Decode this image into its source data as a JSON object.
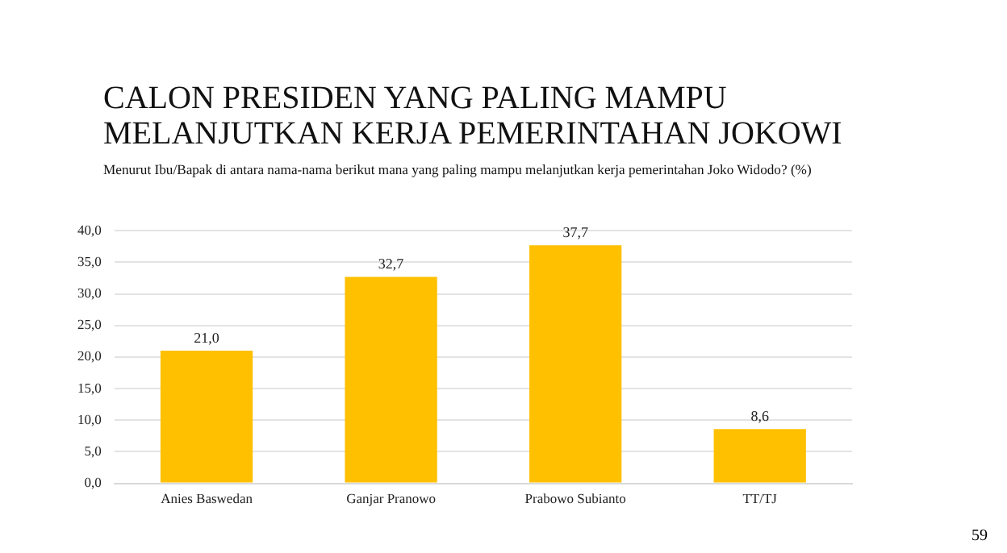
{
  "chart_data": {
    "type": "bar",
    "title": "CALON PRESIDEN YANG PALING MAMPU MELANJUTKAN KERJA PEMERINTAHAN JOKOWI",
    "subtitle": "Menurut Ibu/Bapak di antara nama-nama berikut mana yang paling mampu melanjutkan kerja pemerintahan Joko Widodo?  (%)",
    "categories": [
      "Anies Baswedan",
      "Ganjar Pranowo",
      "Prabowo Subianto",
      "TT/TJ"
    ],
    "values": [
      21.0,
      32.7,
      37.7,
      8.6
    ],
    "value_labels": [
      "21,0",
      "32,7",
      "37,7",
      "8,6"
    ],
    "color": "#ffc000",
    "ylim": [
      0,
      40
    ],
    "yticks": [
      {
        "value": 0,
        "label": "0,0"
      },
      {
        "value": 5,
        "label": "5,0"
      },
      {
        "value": 10,
        "label": "10,0"
      },
      {
        "value": 15,
        "label": "15,0"
      },
      {
        "value": 20,
        "label": "20,0"
      },
      {
        "value": 25,
        "label": "25,0"
      },
      {
        "value": 30,
        "label": "30,0"
      },
      {
        "value": 35,
        "label": "35,0"
      },
      {
        "value": 40,
        "label": "40,0"
      }
    ],
    "grid": "y",
    "annotations": [
      "59"
    ]
  }
}
